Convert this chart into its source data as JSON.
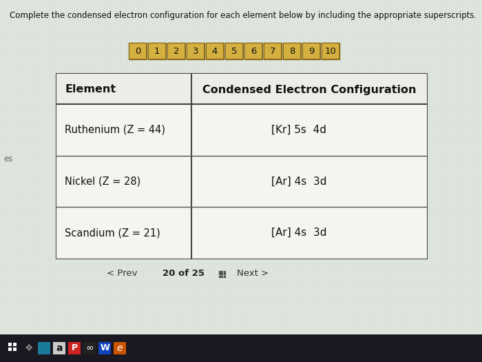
{
  "title": "Complete the condensed electron configuration for each element below by including the appropriate superscripts.",
  "bg_color": "#dde5dc",
  "number_boxes": [
    "0",
    "1",
    "2",
    "3",
    "4",
    "5",
    "6",
    "7",
    "8",
    "9",
    "10"
  ],
  "box_color": "#c8a030",
  "box_border": "#a07820",
  "box_highlight": "#d4b040",
  "table_header_left": "Element",
  "table_header_right": "Condensed Electron Configuration",
  "rows": [
    {
      "element": "Ruthenium (Z = 44)",
      "config": "[Kr] 5s  4d"
    },
    {
      "element": "Nickel (Z = 28)",
      "config": "[Ar] 4s  3d"
    },
    {
      "element": "Scandium (Z = 21)",
      "config": "[Ar] 4s  3d"
    }
  ],
  "taskbar_color": "#1a1820",
  "side_label": "es"
}
